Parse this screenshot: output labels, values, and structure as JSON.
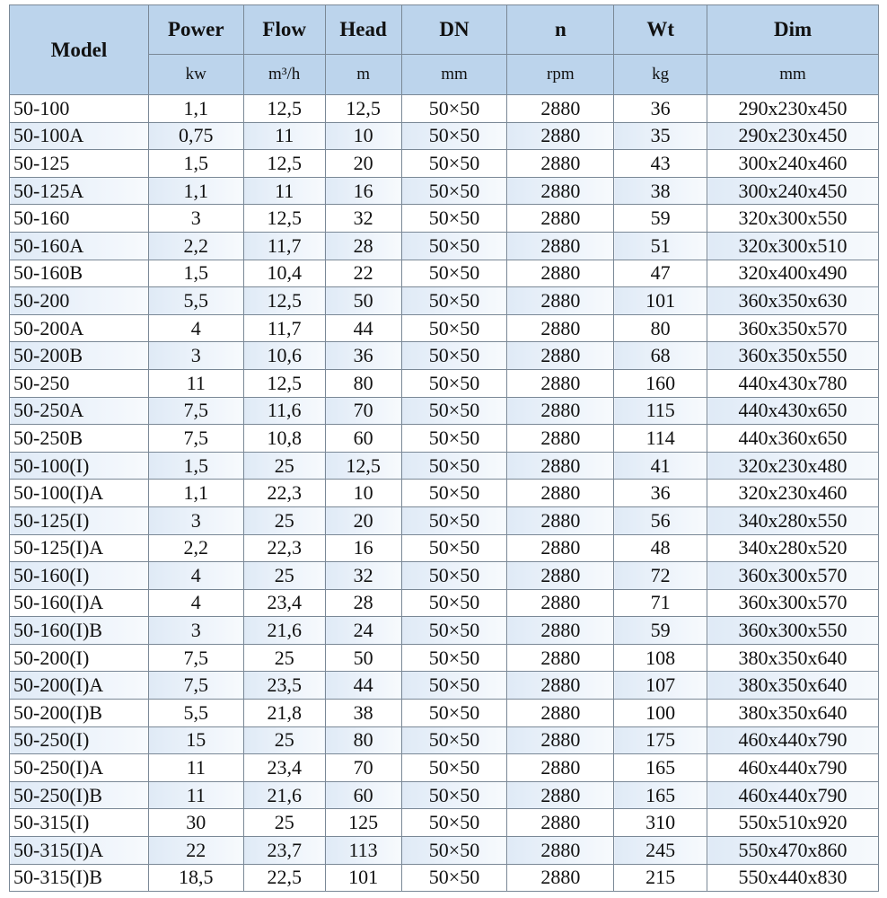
{
  "columns": [
    {
      "name": "Model",
      "unit": ""
    },
    {
      "name": "Power",
      "unit": "kw"
    },
    {
      "name": "Flow",
      "unit": "m³/h"
    },
    {
      "name": "Head",
      "unit": "m"
    },
    {
      "name": "DN",
      "unit": "mm"
    },
    {
      "name": "n",
      "unit": "rpm"
    },
    {
      "name": "Wt",
      "unit": "kg"
    },
    {
      "name": "Dim",
      "unit": "mm"
    }
  ],
  "rows": [
    [
      "50-100",
      "1,1",
      "12,5",
      "12,5",
      "50×50",
      "2880",
      "36",
      "290x230x450"
    ],
    [
      "50-100A",
      "0,75",
      "11",
      "10",
      "50×50",
      "2880",
      "35",
      "290x230x450"
    ],
    [
      "50-125",
      "1,5",
      "12,5",
      "20",
      "50×50",
      "2880",
      "43",
      "300x240x460"
    ],
    [
      "50-125A",
      "1,1",
      "11",
      "16",
      "50×50",
      "2880",
      "38",
      "300x240x450"
    ],
    [
      "50-160",
      "3",
      "12,5",
      "32",
      "50×50",
      "2880",
      "59",
      "320x300x550"
    ],
    [
      "50-160A",
      "2,2",
      "11,7",
      "28",
      "50×50",
      "2880",
      "51",
      "320x300x510"
    ],
    [
      "50-160B",
      "1,5",
      "10,4",
      "22",
      "50×50",
      "2880",
      "47",
      "320x400x490"
    ],
    [
      "50-200",
      "5,5",
      "12,5",
      "50",
      "50×50",
      "2880",
      "101",
      "360x350x630"
    ],
    [
      "50-200A",
      "4",
      "11,7",
      "44",
      "50×50",
      "2880",
      "80",
      "360x350x570"
    ],
    [
      "50-200B",
      "3",
      "10,6",
      "36",
      "50×50",
      "2880",
      "68",
      "360x350x550"
    ],
    [
      "50-250",
      "11",
      "12,5",
      "80",
      "50×50",
      "2880",
      "160",
      "440x430x780"
    ],
    [
      "50-250A",
      "7,5",
      "11,6",
      "70",
      "50×50",
      "2880",
      "115",
      "440x430x650"
    ],
    [
      "50-250B",
      "7,5",
      "10,8",
      "60",
      "50×50",
      "2880",
      "114",
      "440x360x650"
    ],
    [
      "50-100(I)",
      "1,5",
      "25",
      "12,5",
      "50×50",
      "2880",
      "41",
      "320x230x480"
    ],
    [
      "50-100(I)A",
      "1,1",
      "22,3",
      "10",
      "50×50",
      "2880",
      "36",
      "320x230x460"
    ],
    [
      "50-125(I)",
      "3",
      "25",
      "20",
      "50×50",
      "2880",
      "56",
      "340x280x550"
    ],
    [
      "50-125(I)A",
      "2,2",
      "22,3",
      "16",
      "50×50",
      "2880",
      "48",
      "340x280x520"
    ],
    [
      "50-160(I)",
      "4",
      "25",
      "32",
      "50×50",
      "2880",
      "72",
      "360x300x570"
    ],
    [
      "50-160(I)A",
      "4",
      "23,4",
      "28",
      "50×50",
      "2880",
      "71",
      "360x300x570"
    ],
    [
      "50-160(I)B",
      "3",
      "21,6",
      "24",
      "50×50",
      "2880",
      "59",
      "360x300x550"
    ],
    [
      "50-200(I)",
      "7,5",
      "25",
      "50",
      "50×50",
      "2880",
      "108",
      "380x350x640"
    ],
    [
      "50-200(I)A",
      "7,5",
      "23,5",
      "44",
      "50×50",
      "2880",
      "107",
      "380x350x640"
    ],
    [
      "50-200(I)B",
      "5,5",
      "21,8",
      "38",
      "50×50",
      "2880",
      "100",
      "380x350x640"
    ],
    [
      "50-250(I)",
      "15",
      "25",
      "80",
      "50×50",
      "2880",
      "175",
      "460x440x790"
    ],
    [
      "50-250(I)A",
      "11",
      "23,4",
      "70",
      "50×50",
      "2880",
      "165",
      "460x440x790"
    ],
    [
      "50-250(I)B",
      "11",
      "21,6",
      "60",
      "50×50",
      "2880",
      "165",
      "460x440x790"
    ],
    [
      "50-315(I)",
      "30",
      "25",
      "125",
      "50×50",
      "2880",
      "310",
      "550x510x920"
    ],
    [
      "50-315(I)A",
      "22",
      "23,7",
      "113",
      "50×50",
      "2880",
      "245",
      "550x470x860"
    ],
    [
      "50-315(I)B",
      "18,5",
      "22,5",
      "101",
      "50×50",
      "2880",
      "215",
      "550x440x830"
    ]
  ]
}
